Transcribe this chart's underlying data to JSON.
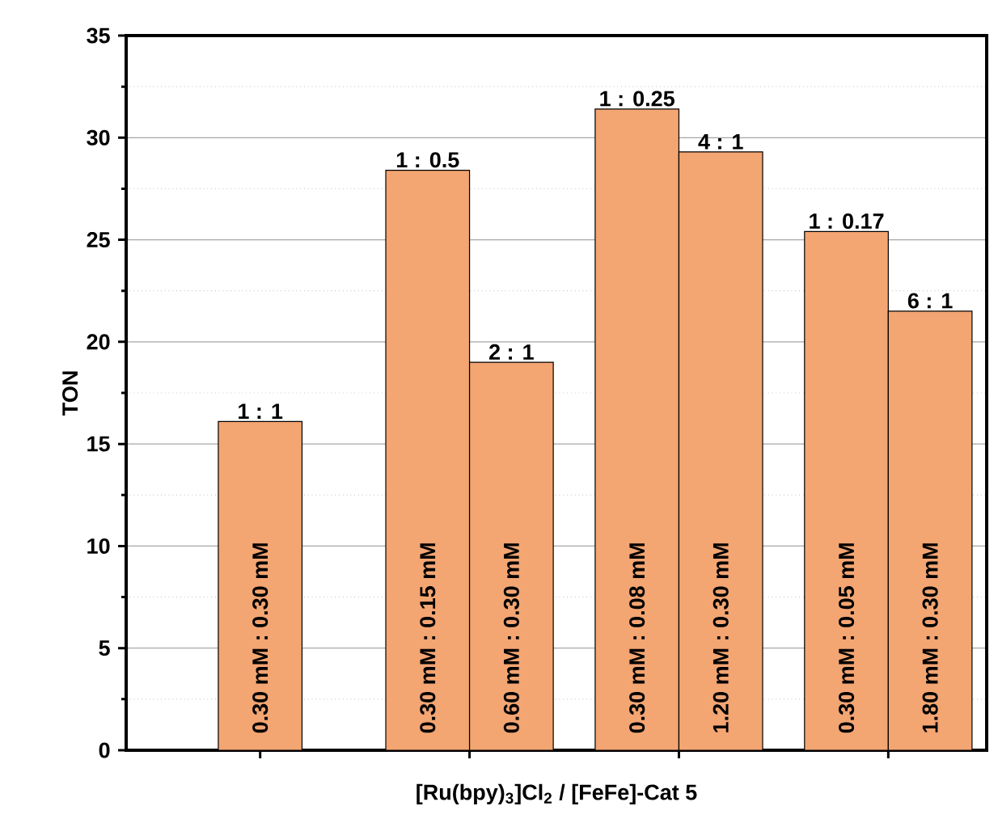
{
  "chart_data": {
    "type": "bar",
    "xlabel": "[Ru(bpy)$_{3}$]Cl$_{2}$ / [FeFe]-Cat 5",
    "ylabel": "TON",
    "categories": [
      null,
      null,
      null,
      null
    ],
    "series": [
      {
        "color": "#f3a572",
        "values": [
          16.1,
          28.4,
          31.4,
          25.4
        ]
      },
      {
        "color": "#f3a572",
        "values": [
          null,
          19.0,
          29.3,
          21.5
        ]
      }
    ],
    "annotations": [
      {
        "text": "1 : 1",
        "y": 16.1
      },
      {
        "text": "1 : 0.5",
        "y": 28.4
      },
      {
        "text": "2 : 1",
        "y": 19.0
      },
      {
        "text": "1 : 0.25",
        "y": 31.4
      },
      {
        "text": "4 : 1",
        "y": 29.3
      },
      {
        "text": "1 : 0.17",
        "y": 25.4
      },
      {
        "text": "6 : 1",
        "y": 21.5
      },
      "0.30 mM : 0.30 mM",
      "0.30 mM : 0.15 mM",
      "0.60 mM : 0.30 mM",
      "0.30 mM : 0.08 mM",
      "1.20 mM : 0.30 mM",
      "0.30 mM : 0.05 mM",
      "1.80 mM : 0.30 mM"
    ],
    "ylim": [
      0,
      35
    ],
    "yticks": [
      0,
      5,
      10,
      15,
      20,
      25,
      30,
      35
    ],
    "grid": "y",
    "tick_labels": "y"
  }
}
